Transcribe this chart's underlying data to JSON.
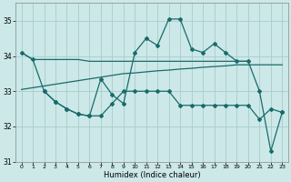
{
  "xlabel": "Humidex (Indice chaleur)",
  "xlim": [
    -0.5,
    23.5
  ],
  "ylim": [
    31.0,
    35.5
  ],
  "yticks": [
    31,
    32,
    33,
    34,
    35
  ],
  "xticks": [
    0,
    1,
    2,
    3,
    4,
    5,
    6,
    7,
    8,
    9,
    10,
    11,
    12,
    13,
    14,
    15,
    16,
    17,
    18,
    19,
    20,
    21,
    22,
    23
  ],
  "bg_color": "#cce8e8",
  "grid_color": "#aacccc",
  "line_color": "#1a6b6b",
  "line1_x": [
    0,
    1,
    2,
    3,
    4,
    5,
    6,
    7,
    8,
    9,
    10,
    11,
    12,
    13,
    14,
    15,
    16,
    17,
    18,
    19,
    20
  ],
  "line1_y": [
    34.1,
    33.9,
    33.9,
    33.9,
    33.9,
    33.9,
    33.85,
    33.85,
    33.85,
    33.85,
    33.85,
    33.85,
    33.85,
    33.85,
    33.85,
    33.85,
    33.85,
    33.85,
    33.85,
    33.85,
    33.85
  ],
  "line2_x": [
    0,
    1,
    2,
    3,
    4,
    5,
    6,
    7,
    8,
    9,
    10,
    11,
    12,
    13,
    14,
    15,
    16,
    17,
    18,
    19,
    20,
    21,
    22,
    23
  ],
  "line2_y": [
    33.05,
    33.1,
    33.15,
    33.2,
    33.25,
    33.3,
    33.35,
    33.4,
    33.45,
    33.5,
    33.52,
    33.55,
    33.58,
    33.6,
    33.63,
    33.65,
    33.68,
    33.7,
    33.72,
    33.75,
    33.75,
    33.75,
    33.75,
    33.75
  ],
  "line3_x": [
    0,
    1,
    2,
    3,
    4,
    5,
    6,
    7,
    8,
    9,
    10,
    11,
    12,
    13,
    14,
    15,
    16,
    17,
    18,
    19,
    20,
    21,
    22,
    23
  ],
  "line3_y": [
    34.1,
    33.9,
    33.0,
    32.7,
    32.5,
    32.35,
    32.3,
    33.35,
    32.9,
    32.65,
    34.1,
    34.5,
    34.3,
    35.05,
    35.05,
    34.2,
    34.1,
    34.35,
    34.1,
    33.85,
    33.85,
    33.0,
    31.3,
    32.4
  ],
  "line4_x": [
    2,
    3,
    4,
    5,
    6,
    7,
    8,
    9,
    10,
    11,
    12,
    13,
    14,
    15,
    16,
    17,
    18,
    19,
    20,
    21,
    22,
    23
  ],
  "line4_y": [
    33.0,
    32.7,
    32.5,
    32.35,
    32.3,
    32.3,
    32.65,
    33.0,
    33.0,
    33.0,
    33.0,
    33.0,
    32.6,
    32.6,
    32.6,
    32.6,
    32.6,
    32.6,
    32.6,
    32.2,
    32.5,
    32.4
  ]
}
